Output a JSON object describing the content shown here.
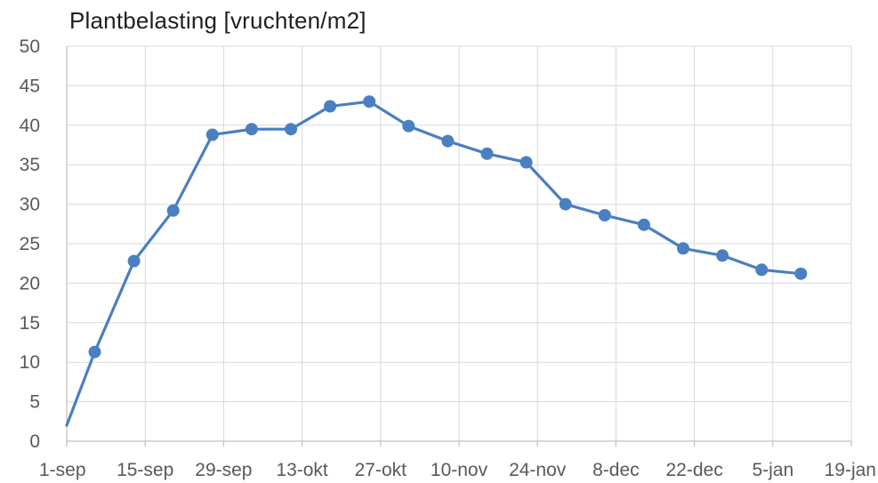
{
  "chart_data": {
    "type": "line",
    "title": "Plantbelasting [vruchten/m2]",
    "xlabel": "",
    "ylabel": "",
    "ylim": [
      0,
      50
    ],
    "y_ticks": [
      "0",
      "5",
      "10",
      "15",
      "20",
      "25",
      "30",
      "35",
      "40",
      "45",
      "50"
    ],
    "x_ticks": [
      "1-sep",
      "15-sep",
      "29-sep",
      "13-okt",
      "27-okt",
      "10-nov",
      "24-nov",
      "8-dec",
      "22-dec",
      "5-jan",
      "19-jan"
    ],
    "xlim": [
      "2015-09-01",
      "2016-01-19"
    ],
    "grid": true,
    "legend": "none",
    "series": [
      {
        "color": "#4a7fc1",
        "x": [
          "2015-09-01",
          "2015-09-06",
          "2015-09-13",
          "2015-09-20",
          "2015-09-27",
          "2015-10-04",
          "2015-10-11",
          "2015-10-18",
          "2015-10-25",
          "2015-11-01",
          "2015-11-08",
          "2015-11-15",
          "2015-11-22",
          "2015-11-29",
          "2015-12-06",
          "2015-12-13",
          "2015-12-20",
          "2015-12-27",
          "2016-01-03",
          "2016-01-10"
        ],
        "values": [
          2,
          11.3,
          22.8,
          29.2,
          38.8,
          39.5,
          39.5,
          42.4,
          43,
          39.9,
          38,
          36.4,
          35.3,
          30,
          28.6,
          27.4,
          24.4,
          23.5,
          21.7,
          21.2
        ]
      }
    ]
  }
}
